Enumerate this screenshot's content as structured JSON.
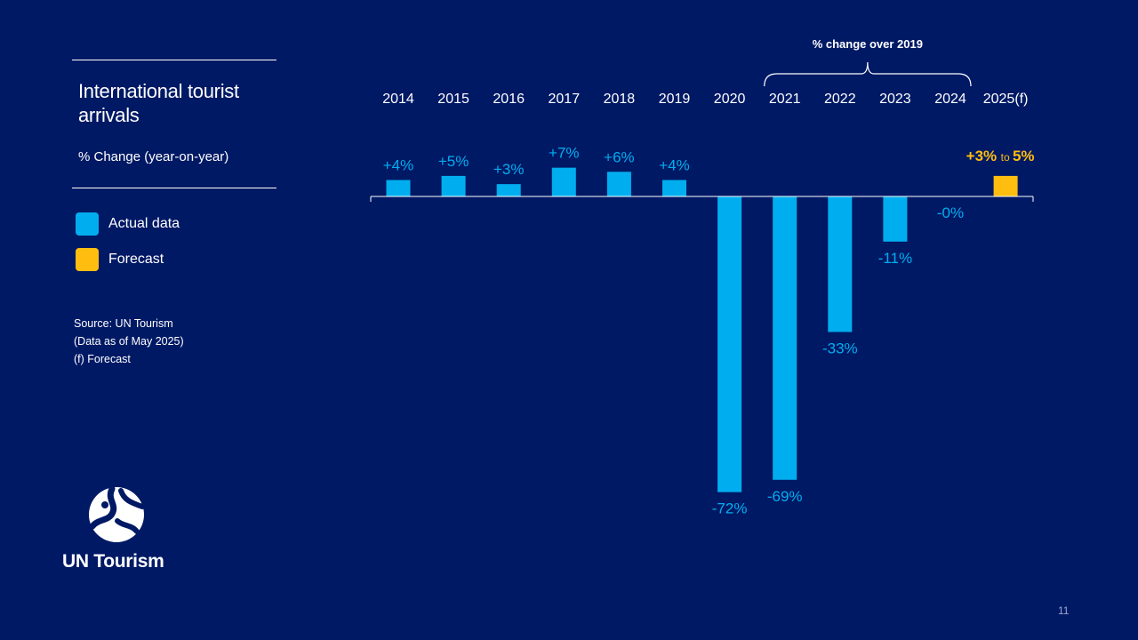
{
  "panel": {
    "title": "International tourist arrivals",
    "subtitle": "% Change (year-on-year)"
  },
  "legend": {
    "actual": {
      "label": "Actual data",
      "color": "#00AEEF"
    },
    "forecast": {
      "label": "Forecast",
      "color": "#FFBE0F"
    }
  },
  "source": {
    "line1": "Source: UN Tourism",
    "line2": "(Data as of May 2025)",
    "line3": "(f) Forecast"
  },
  "brand": {
    "name": "UN Tourism",
    "logo_icon": "un-tourism-globe-icon"
  },
  "page_number": "11",
  "chart_data": {
    "type": "bar",
    "title": "International tourist arrivals",
    "ylabel": "% Change (year-on-year)",
    "xlabel": "",
    "categories": [
      "2014",
      "2015",
      "2016",
      "2017",
      "2018",
      "2019",
      "2020",
      "2021",
      "2022",
      "2023",
      "2024",
      "2025(f)"
    ],
    "values": [
      4,
      5,
      3,
      7,
      6,
      4,
      -72,
      -69,
      -33,
      -11,
      0,
      5
    ],
    "labels": [
      "+4%",
      "+5%",
      "+3%",
      "+7%",
      "+6%",
      "+4%",
      "-72%",
      "-69%",
      "-33%",
      "-11%",
      "-0%",
      ""
    ],
    "kinds": [
      "actual",
      "actual",
      "actual",
      "actual",
      "actual",
      "actual",
      "actual",
      "actual",
      "actual",
      "actual",
      "actual",
      "forecast"
    ],
    "forecast_range": {
      "low": "+3%",
      "connector": "to",
      "high": "5%"
    },
    "bracket": {
      "label": "% change over 2019",
      "from": "2021",
      "to": "2024"
    },
    "ylim": [
      -75,
      10
    ],
    "grid": false,
    "legend_position": "left",
    "colors": {
      "actual": "#00AEEF",
      "forecast": "#FFBE0F",
      "axis": "#FFFFFF"
    }
  }
}
